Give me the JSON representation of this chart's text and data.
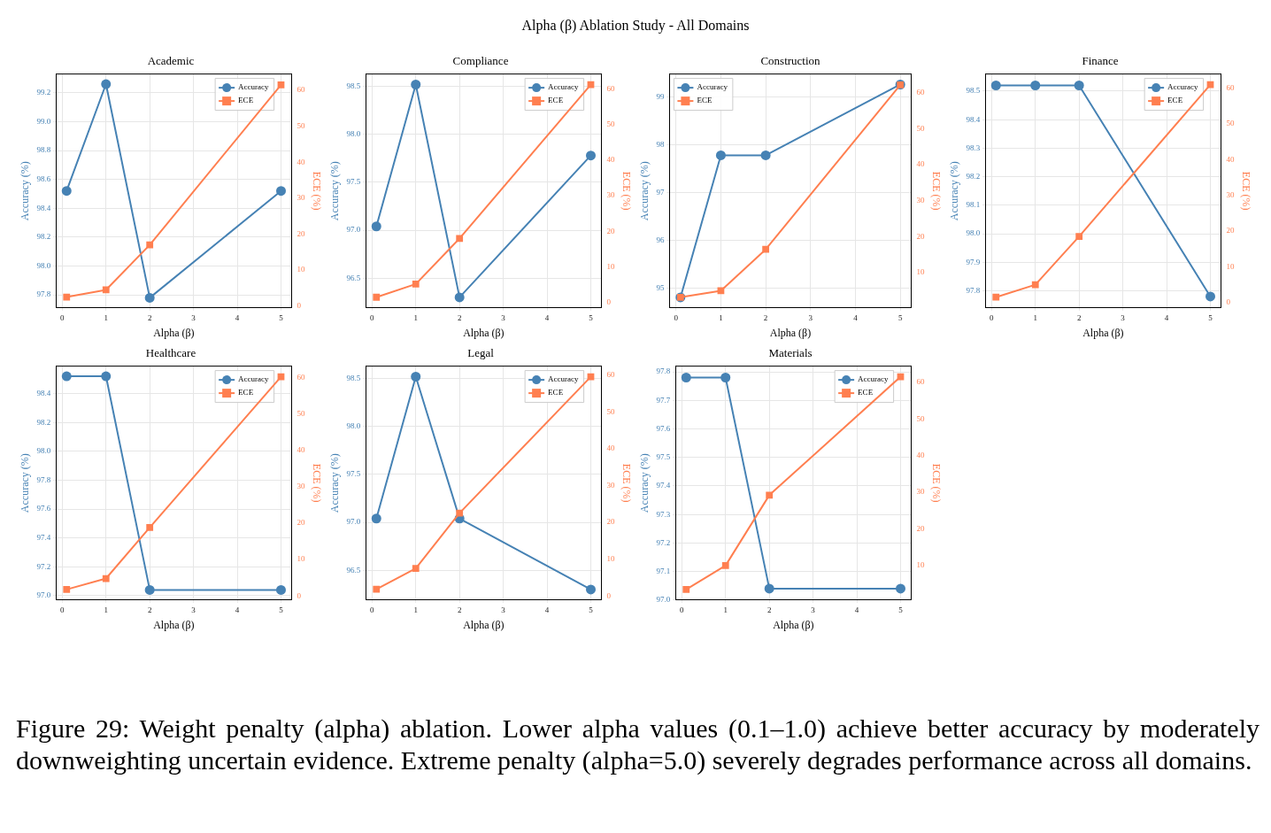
{
  "chart_data": [
    {
      "type": "other",
      "title": "Alpha (β) Ablation Study - All Domains",
      "annotations": [
        "Figure 29: Weight penalty (alpha) ablation. Lower alpha values (0.1–1.0) achieve better accuracy by moderately downweighting uncertain evidence. Extreme penalty (alpha=5.0) severely degrades performance across all domains."
      ]
    },
    {
      "type": "line",
      "title": "Academic",
      "xlabel": "Alpha (β)",
      "ylabel": "Accuracy (%)",
      "y2label": "ECE (%)",
      "x": [
        0.1,
        1,
        2,
        5
      ],
      "xlim": [
        -0.145,
        5.245
      ],
      "xticks": [
        0,
        1,
        2,
        3,
        4,
        5
      ],
      "ylim": [
        97.71,
        99.33
      ],
      "yticks": [
        97.8,
        {
          "value": 98.0,
          "label": "98.0"
        },
        98.2,
        98.4,
        98.6,
        98.8,
        {
          "value": 99.0,
          "label": "99.0"
        },
        99.2
      ],
      "y2lim": [
        -0.5,
        64.5
      ],
      "y2ticks": [
        0,
        10,
        20,
        30,
        40,
        50,
        60
      ],
      "grid": true,
      "legend": "top right",
      "series": [
        {
          "name": "Accuracy",
          "color": "#4682b4",
          "marker": "circle",
          "values": [
            98.52,
            99.26,
            97.78,
            98.52
          ]
        },
        {
          "name": "ECE",
          "color": "#ff7f50",
          "marker": "square",
          "axis": "y2",
          "values": [
            2.5,
            4.5,
            17,
            61.5
          ]
        }
      ]
    },
    {
      "type": "line",
      "title": "Compliance",
      "xlabel": "Alpha (β)",
      "ylabel": "Accuracy (%)",
      "y2label": "ECE (%)",
      "x": [
        0.1,
        1,
        2,
        5
      ],
      "xlim": [
        -0.145,
        5.245
      ],
      "xticks": [
        0,
        1,
        2,
        3,
        4,
        5
      ],
      "ylim": [
        96.19,
        98.63
      ],
      "yticks": [
        96.5,
        {
          "value": 97.0,
          "label": "97.0"
        },
        97.5,
        {
          "value": 98.0,
          "label": "98.0"
        },
        98.5
      ],
      "y2lim": [
        -1.5,
        64.2
      ],
      "y2ticks": [
        0,
        10,
        20,
        30,
        40,
        50,
        60
      ],
      "grid": true,
      "legend": "top right",
      "series": [
        {
          "name": "Accuracy",
          "color": "#4682b4",
          "marker": "circle",
          "values": [
            97.04,
            98.52,
            96.3,
            97.78
          ]
        },
        {
          "name": "ECE",
          "color": "#ff7f50",
          "marker": "square",
          "axis": "y2",
          "values": [
            1.5,
            5.2,
            18,
            61.2
          ]
        }
      ]
    },
    {
      "type": "line",
      "title": "Construction",
      "xlabel": "Alpha (β)",
      "ylabel": "Accuracy (%)",
      "y2label": "ECE (%)",
      "x": [
        0.1,
        1,
        2,
        5
      ],
      "xlim": [
        -0.145,
        5.245
      ],
      "xticks": [
        0,
        1,
        2,
        3,
        4,
        5
      ],
      "ylim": [
        94.59,
        99.48
      ],
      "yticks": [
        95,
        96,
        97,
        98,
        99
      ],
      "y2lim": [
        0.25,
        65.2
      ],
      "y2ticks": [
        10,
        20,
        30,
        40,
        50,
        60
      ],
      "grid": true,
      "legend": "top left",
      "series": [
        {
          "name": "Accuracy",
          "color": "#4682b4",
          "marker": "circle",
          "values": [
            94.81,
            97.78,
            97.78,
            99.26
          ]
        },
        {
          "name": "ECE",
          "color": "#ff7f50",
          "marker": "square",
          "axis": "y2",
          "values": [
            3.2,
            5,
            16.5,
            62.2
          ]
        }
      ]
    },
    {
      "type": "line",
      "title": "Finance",
      "xlabel": "Alpha (β)",
      "ylabel": "Accuracy (%)",
      "y2label": "ECE (%)",
      "x": [
        0.1,
        1,
        2,
        5
      ],
      "xlim": [
        -0.145,
        5.245
      ],
      "xticks": [
        0,
        1,
        2,
        3,
        4,
        5
      ],
      "ylim": [
        97.74,
        98.56
      ],
      "yticks": [
        97.8,
        97.9,
        {
          "value": 98.0,
          "label": "98.0"
        },
        98.1,
        98.2,
        98.3,
        98.4,
        98.5
      ],
      "y2lim": [
        -1.5,
        64
      ],
      "y2ticks": [
        0,
        10,
        20,
        30,
        40,
        50,
        60
      ],
      "grid": true,
      "legend": "top right",
      "series": [
        {
          "name": "Accuracy",
          "color": "#4682b4",
          "marker": "circle",
          "values": [
            98.52,
            98.52,
            98.52,
            97.78
          ]
        },
        {
          "name": "ECE",
          "color": "#ff7f50",
          "marker": "square",
          "axis": "y2",
          "values": [
            1.5,
            5,
            18.5,
            61
          ]
        }
      ]
    },
    {
      "type": "line",
      "title": "Healthcare",
      "xlabel": "Alpha (β)",
      "ylabel": "Accuracy (%)",
      "y2label": "ECE (%)",
      "x": [
        0.1,
        1,
        2,
        5
      ],
      "xlim": [
        -0.145,
        5.245
      ],
      "xticks": [
        0,
        1,
        2,
        3,
        4,
        5
      ],
      "ylim": [
        96.97,
        98.59
      ],
      "yticks": [
        {
          "value": 97.0,
          "label": "97.0"
        },
        97.2,
        97.4,
        97.6,
        97.8,
        {
          "value": 98.0,
          "label": "98.0"
        },
        98.2,
        98.4
      ],
      "y2lim": [
        -1.1,
        63.1
      ],
      "y2ticks": [
        0,
        10,
        20,
        30,
        40,
        50,
        60
      ],
      "grid": true,
      "legend": "top right",
      "series": [
        {
          "name": "Accuracy",
          "color": "#4682b4",
          "marker": "circle",
          "values": [
            98.52,
            98.52,
            97.04,
            97.04
          ]
        },
        {
          "name": "ECE",
          "color": "#ff7f50",
          "marker": "square",
          "axis": "y2",
          "values": [
            1.8,
            4.8,
            18.8,
            60.2
          ]
        }
      ]
    },
    {
      "type": "line",
      "title": "Legal",
      "xlabel": "Alpha (β)",
      "ylabel": "Accuracy (%)",
      "y2label": "ECE (%)",
      "x": [
        0.1,
        1,
        2,
        5
      ],
      "xlim": [
        -0.145,
        5.245
      ],
      "xticks": [
        0,
        1,
        2,
        3,
        4,
        5
      ],
      "ylim": [
        96.19,
        98.63
      ],
      "yticks": [
        96.5,
        {
          "value": 97.0,
          "label": "97.0"
        },
        97.5,
        {
          "value": 98.0,
          "label": "98.0"
        },
        98.5
      ],
      "y2lim": [
        -1.1,
        62.4
      ],
      "y2ticks": [
        0,
        10,
        20,
        30,
        40,
        50,
        60
      ],
      "grid": true,
      "legend": "top right",
      "series": [
        {
          "name": "Accuracy",
          "color": "#4682b4",
          "marker": "circle",
          "values": [
            97.04,
            98.52,
            97.04,
            96.3
          ]
        },
        {
          "name": "ECE",
          "color": "#ff7f50",
          "marker": "square",
          "axis": "y2",
          "values": [
            1.8,
            7.5,
            22.5,
            59.5
          ]
        }
      ]
    },
    {
      "type": "line",
      "title": "Materials",
      "xlabel": "Alpha (β)",
      "ylabel": "Accuracy (%)",
      "y2label": "ECE (%)",
      "x": [
        0.1,
        1,
        2,
        5
      ],
      "xlim": [
        -0.145,
        5.245
      ],
      "xticks": [
        0,
        1,
        2,
        3,
        4,
        5
      ],
      "ylim": [
        97.0,
        97.82
      ],
      "yticks": [
        {
          "value": 97.0,
          "label": "97.0"
        },
        97.1,
        97.2,
        97.3,
        97.4,
        97.5,
        97.6,
        97.7,
        97.8
      ],
      "y2lim": [
        0.6,
        64.4
      ],
      "y2ticks": [
        10,
        20,
        30,
        40,
        50,
        60
      ],
      "grid": true,
      "legend": "top right",
      "series": [
        {
          "name": "Accuracy",
          "color": "#4682b4",
          "marker": "circle",
          "values": [
            97.78,
            97.78,
            97.04,
            97.04
          ]
        },
        {
          "name": "ECE",
          "color": "#ff7f50",
          "marker": "square",
          "axis": "y2",
          "values": [
            3.5,
            10,
            29.2,
            61.5
          ]
        }
      ]
    }
  ]
}
